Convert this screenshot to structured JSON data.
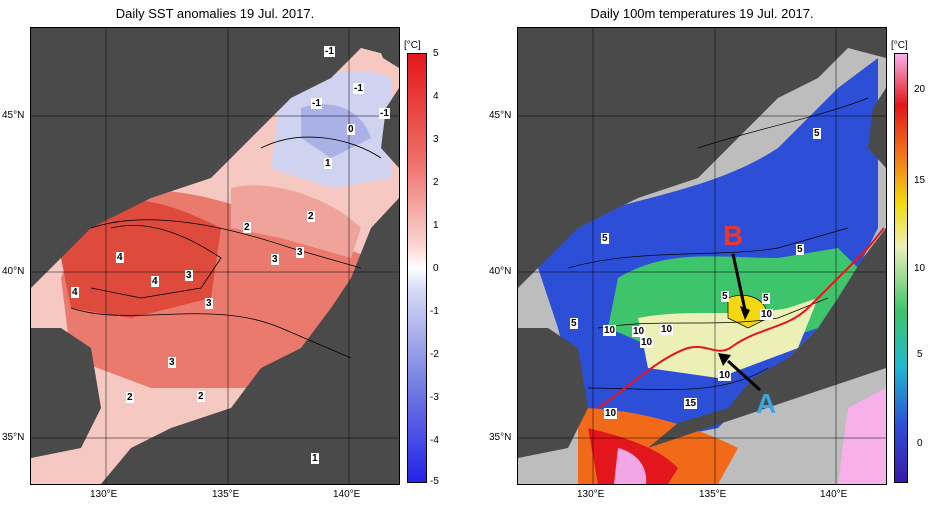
{
  "left_panel": {
    "title": "Daily SST anomalies 19 Jul. 2017.",
    "unit": "[°C]",
    "lat_labels": [
      "45°N",
      "40°N",
      "35°N"
    ],
    "lon_labels": [
      "130°E",
      "135°E",
      "140°E"
    ],
    "colorbar_ticks": [
      "5",
      "4",
      "3",
      "2",
      "1",
      "0",
      "-1",
      "-2",
      "-3",
      "-4",
      "-5"
    ],
    "contour_labels": [
      "-1",
      "-1",
      "-1",
      "-1",
      "0",
      "1",
      "2",
      "2",
      "3",
      "3",
      "4",
      "4",
      "4",
      "3",
      "3",
      "3",
      "2",
      "2",
      "1"
    ]
  },
  "right_panel": {
    "title": "Daily 100m temperatures 19 Jul. 2017.",
    "unit": "[°C]",
    "lat_labels": [
      "45°N",
      "40°N",
      "35°N"
    ],
    "lon_labels": [
      "130°E",
      "135°E",
      "140°E"
    ],
    "colorbar_ticks": [
      "20",
      "15",
      "10",
      "5",
      "0"
    ],
    "contour_labels": [
      "5",
      "5",
      "5",
      "5",
      "5",
      "5",
      "10",
      "10",
      "10",
      "10",
      "10",
      "10",
      "15",
      "10"
    ],
    "markers": [
      {
        "label": "B",
        "color": "#e8392f"
      },
      {
        "label": "A",
        "color": "#3aa7e0"
      }
    ]
  },
  "colors": {
    "land": "#4a4a4a",
    "mask": "#bdbdbd",
    "anom_pos": "#e8392f",
    "anom_neg": "#3b3bd6"
  }
}
